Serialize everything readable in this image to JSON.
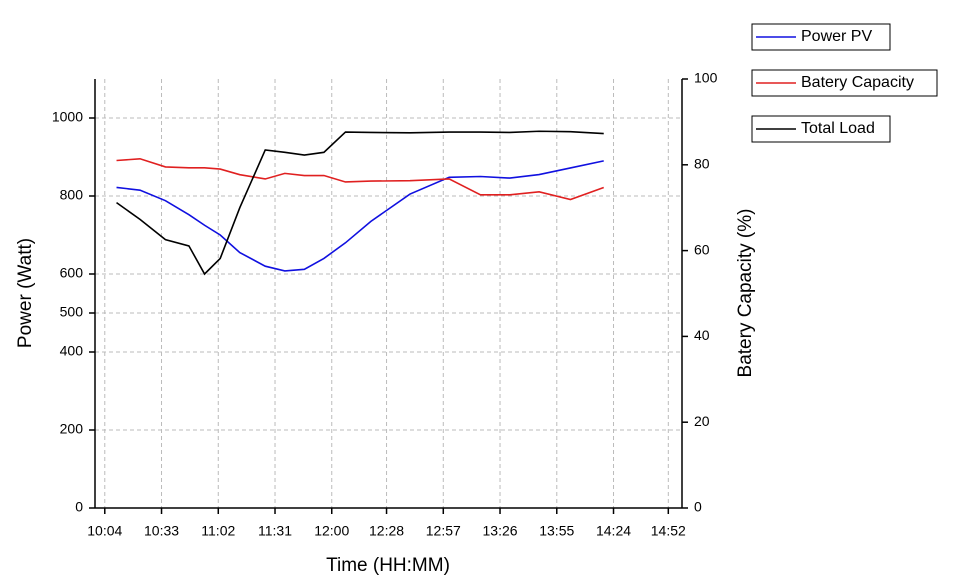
{
  "chart_data": {
    "type": "line",
    "x_label": "Time (HH:MM)",
    "y_label": "Power (Watt)",
    "y2_label": "Batery Capacity (%)",
    "x": [
      610,
      622,
      635,
      647,
      655,
      663,
      673,
      686,
      696,
      706,
      716,
      727,
      740,
      760,
      780,
      796,
      811,
      826,
      842,
      859
    ],
    "xlim": [
      599,
      899
    ],
    "xticks": [
      {
        "value": 604,
        "label": "10:04"
      },
      {
        "value": 633,
        "label": "10:33"
      },
      {
        "value": 662,
        "label": "11:02"
      },
      {
        "value": 691,
        "label": "11:31"
      },
      {
        "value": 720,
        "label": "12:00"
      },
      {
        "value": 748,
        "label": "12:28"
      },
      {
        "value": 777,
        "label": "12:57"
      },
      {
        "value": 806,
        "label": "13:26"
      },
      {
        "value": 835,
        "label": "13:55"
      },
      {
        "value": 864,
        "label": "14:24"
      },
      {
        "value": 892,
        "label": "14:52"
      }
    ],
    "ylim": [
      0,
      1100
    ],
    "yticks": [
      0,
      200,
      400,
      500,
      600,
      800,
      1000
    ],
    "y2lim": [
      0,
      100
    ],
    "y2ticks": [
      0,
      20,
      40,
      60,
      80,
      100
    ],
    "grid": true,
    "legend": "upper right outside",
    "series": [
      {
        "name": "Power PV",
        "color": "#1010e0",
        "values": [
          822,
          815,
          788,
          752,
          725,
          700,
          655,
          620,
          608,
          612,
          640,
          680,
          735,
          805,
          848,
          850,
          846,
          855,
          872,
          890
        ]
      },
      {
        "name": "Batery Capacity",
        "color": "#e02020",
        "axis": "y2",
        "values": [
          81,
          81.4,
          79.5,
          79.3,
          79.3,
          79,
          77.7,
          76.7,
          78,
          77.5,
          77.5,
          76,
          76.2,
          76.3,
          76.7,
          73,
          73,
          73.7,
          71.9,
          74.7
        ]
      },
      {
        "name": "Total Load",
        "color": "#000000",
        "values": [
          783,
          740,
          688,
          672,
          600,
          640,
          770,
          918,
          912,
          905,
          912,
          964,
          963,
          962,
          964,
          964,
          963,
          966,
          965,
          960
        ]
      }
    ]
  }
}
